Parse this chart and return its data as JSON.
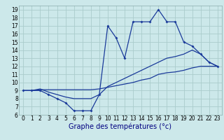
{
  "title": "",
  "xlabel": "Graphe des températures (°c)",
  "background_color": "#cce8ea",
  "grid_color": "#aacccc",
  "line_color": "#1a3a9a",
  "hours": [
    0,
    1,
    2,
    3,
    4,
    5,
    6,
    7,
    8,
    9,
    10,
    11,
    12,
    13,
    14,
    15,
    16,
    17,
    18,
    19,
    20,
    21,
    22,
    23
  ],
  "temp_main": [
    9,
    9,
    9,
    8.5,
    8,
    7.5,
    6.5,
    6.5,
    6.5,
    8.5,
    17,
    15.5,
    13,
    17.5,
    17.5,
    17.5,
    19,
    17.5,
    17.5,
    15,
    14.5,
    13.5,
    12.5,
    12
  ],
  "temp_line2": [
    9,
    9,
    9.2,
    8.8,
    8.5,
    8.2,
    8.0,
    8.0,
    8.0,
    8.5,
    9.5,
    10.0,
    10.5,
    11.0,
    11.5,
    12.0,
    12.5,
    13.0,
    13.2,
    13.5,
    14.0,
    13.5,
    12.5,
    12.0
  ],
  "temp_line3": [
    9,
    9,
    9.1,
    9.1,
    9.1,
    9.1,
    9.1,
    9.1,
    9.1,
    9.2,
    9.4,
    9.6,
    9.8,
    10.0,
    10.3,
    10.5,
    11.0,
    11.2,
    11.3,
    11.5,
    11.8,
    12.0,
    12.0,
    12.0
  ],
  "ylim": [
    6,
    19.5
  ],
  "yticks": [
    6,
    7,
    8,
    9,
    10,
    11,
    12,
    13,
    14,
    15,
    16,
    17,
    18,
    19
  ],
  "xticks": [
    0,
    1,
    2,
    3,
    4,
    5,
    6,
    7,
    8,
    9,
    10,
    11,
    12,
    13,
    14,
    15,
    16,
    17,
    18,
    19,
    20,
    21,
    22,
    23
  ],
  "tick_fontsize": 5.5,
  "xlabel_fontsize": 7
}
